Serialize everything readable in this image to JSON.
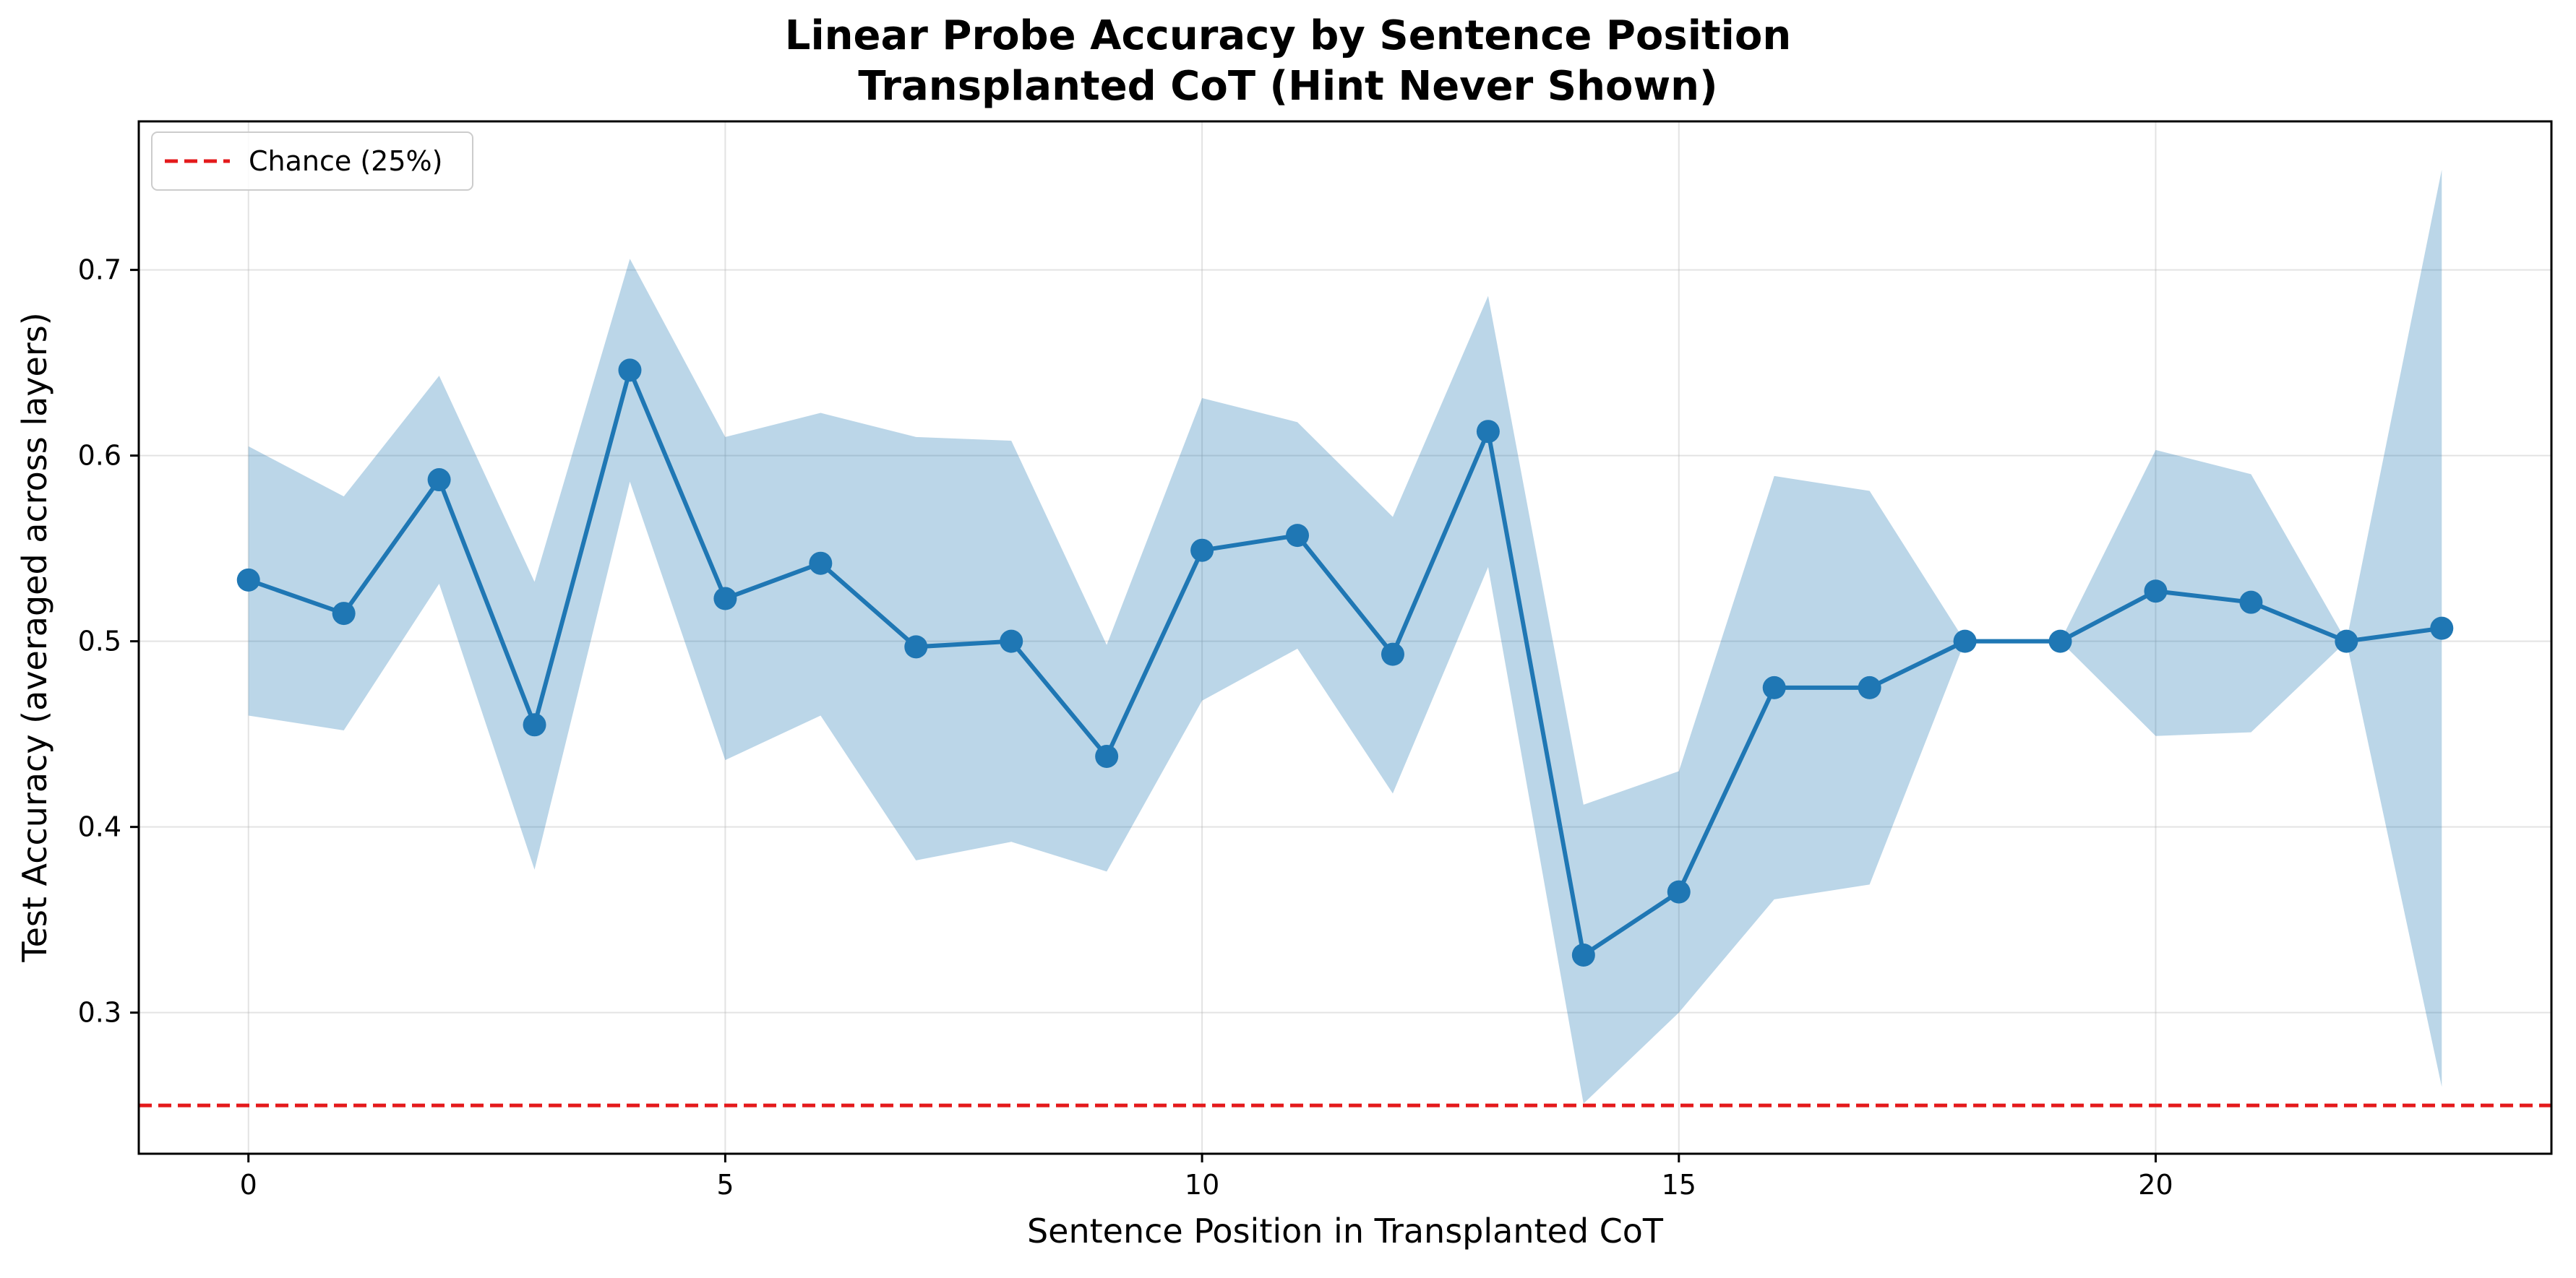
{
  "chart_data": {
    "type": "line",
    "title": "Linear Probe Accuracy by Sentence Position",
    "subtitle": "Transplanted CoT (Hint Never Shown)",
    "xlabel": "Sentence Position in Transplanted CoT",
    "ylabel": "Test Accuracy (averaged across layers)",
    "xlim": [
      -1.15,
      24.15
    ],
    "ylim": [
      0.224,
      0.78
    ],
    "xticks": [
      0,
      5,
      10,
      15,
      20
    ],
    "yticks": [
      0.3,
      0.4,
      0.5,
      0.6,
      0.7
    ],
    "xtick_labels": [
      "0",
      "5",
      "10",
      "15",
      "20"
    ],
    "ytick_labels": [
      "0.3",
      "0.4",
      "0.5",
      "0.6",
      "0.7"
    ],
    "grid": true,
    "legend_position": "top-left",
    "x": [
      0,
      1,
      2,
      3,
      4,
      5,
      6,
      7,
      8,
      9,
      10,
      11,
      12,
      13,
      14,
      15,
      16,
      17,
      18,
      19,
      20,
      21,
      22,
      23
    ],
    "series": [
      {
        "values": [
          0.533,
          0.515,
          0.587,
          0.455,
          0.646,
          0.523,
          0.542,
          0.497,
          0.5,
          0.438,
          0.549,
          0.557,
          0.493,
          0.613,
          0.331,
          0.365,
          0.475,
          0.475,
          0.5,
          0.5,
          0.527,
          0.521,
          0.5,
          0.507
        ],
        "lower": [
          0.46,
          0.452,
          0.531,
          0.377,
          0.586,
          0.436,
          0.46,
          0.382,
          0.392,
          0.376,
          0.468,
          0.496,
          0.418,
          0.54,
          0.251,
          0.3,
          0.361,
          0.369,
          0.5,
          0.5,
          0.449,
          0.451,
          0.5,
          0.26
        ],
        "upper": [
          0.605,
          0.578,
          0.643,
          0.532,
          0.706,
          0.61,
          0.623,
          0.61,
          0.608,
          0.498,
          0.631,
          0.618,
          0.567,
          0.686,
          0.412,
          0.43,
          0.589,
          0.581,
          0.5,
          0.5,
          0.603,
          0.59,
          0.5,
          0.754
        ],
        "color": "#1f77b4",
        "band_color": "#1f77b4"
      }
    ],
    "reference_lines": [
      {
        "name": "Chance (25%)",
        "y": 0.25,
        "color": "#e41a1c",
        "style": "dashed"
      }
    ]
  }
}
